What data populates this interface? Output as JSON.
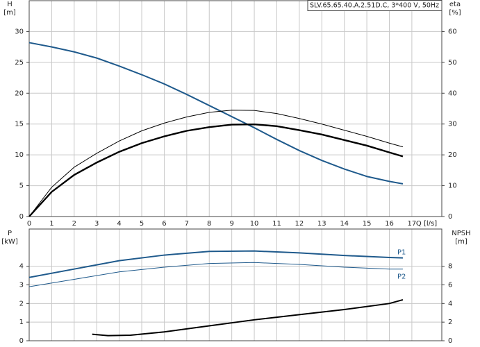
{
  "chart_data": [
    {
      "type": "line",
      "title": "SLV.65.65.40.A.2.51D.C, 3*400 V, 50Hz",
      "ylabel": "H",
      "yunit": "[m]",
      "y2label": "eta",
      "y2unit": "[%]",
      "xlabel": "Q [l/s]",
      "xlim": [
        0,
        18.33
      ],
      "xticks": [
        0,
        1,
        2,
        3,
        4,
        5,
        6,
        7,
        8,
        9,
        10,
        11,
        12,
        13,
        14,
        15,
        16,
        17
      ],
      "xtick_labels": true,
      "ylim": [
        0,
        35
      ],
      "yticks": [
        0,
        5,
        10,
        15,
        20,
        25,
        30
      ],
      "y2lim": [
        0,
        70
      ],
      "y2ticks": [
        0,
        10,
        20,
        30,
        40,
        50,
        60
      ],
      "grid": true,
      "series": [
        {
          "color": "#1f5a8c",
          "width": 2,
          "x": [
            0,
            1,
            2,
            3,
            4,
            5,
            6,
            7,
            8,
            9,
            10,
            11,
            12,
            13,
            14,
            15,
            16,
            16.6
          ],
          "values": [
            28.2,
            27.5,
            26.7,
            25.7,
            24.4,
            23.0,
            21.5,
            19.8,
            18.0,
            16.2,
            14.4,
            12.5,
            10.7,
            9.1,
            7.7,
            6.5,
            5.7,
            5.3
          ]
        },
        {
          "color": "#000000",
          "width": 1,
          "axis": "y2",
          "x": [
            0,
            1,
            2,
            3,
            4,
            5,
            6,
            7,
            8,
            9,
            10,
            11,
            12,
            13,
            14,
            15,
            16,
            16.6
          ],
          "values": [
            0,
            9.5,
            16,
            20.5,
            24.5,
            27.8,
            30.3,
            32.3,
            33.8,
            34.5,
            34.4,
            33.4,
            31.8,
            30,
            28,
            26,
            23.8,
            22.6
          ]
        },
        {
          "color": "#000000",
          "width": 2.4,
          "axis": "y2",
          "x": [
            0,
            1,
            2,
            3,
            4,
            5,
            6,
            7,
            8,
            9,
            10,
            11,
            12,
            13,
            14,
            15,
            16,
            16.6
          ],
          "values": [
            0,
            8,
            13.5,
            17.5,
            21,
            23.8,
            26,
            27.8,
            29,
            29.8,
            29.9,
            29.3,
            28,
            26.6,
            24.8,
            23,
            20.8,
            19.5
          ]
        }
      ]
    },
    {
      "type": "line",
      "ylabel": "P",
      "yunit": "[kW]",
      "y2label": "NPSH",
      "y2unit": "[m]",
      "xlim": [
        0,
        18.33
      ],
      "xticks": [
        0,
        1,
        2,
        3,
        4,
        5,
        6,
        7,
        8,
        9,
        10,
        11,
        12,
        13,
        14,
        15,
        16,
        17
      ],
      "xtick_labels": false,
      "ylim": [
        0,
        6
      ],
      "yticks": [
        0,
        1,
        2,
        3,
        4
      ],
      "y2lim": [
        0,
        12
      ],
      "y2ticks": [
        0,
        2,
        4,
        6,
        8
      ],
      "grid": true,
      "series": [
        {
          "name": "P1",
          "color": "#1f5a8c",
          "width": 2,
          "x": [
            0,
            2,
            4,
            6,
            8,
            10,
            12,
            14,
            16,
            16.6
          ],
          "values": [
            3.4,
            3.85,
            4.3,
            4.6,
            4.8,
            4.82,
            4.72,
            4.58,
            4.47,
            4.45
          ]
        },
        {
          "name": "P2",
          "color": "#1f5a8c",
          "width": 1,
          "x": [
            0,
            2,
            4,
            6,
            8,
            10,
            12,
            14,
            16,
            16.6
          ],
          "values": [
            2.9,
            3.3,
            3.7,
            3.95,
            4.15,
            4.2,
            4.1,
            3.95,
            3.85,
            3.85
          ]
        },
        {
          "color": "#000000",
          "width": 2,
          "axis": "y2",
          "x": [
            2.8,
            3.5,
            4.5,
            6,
            8,
            10,
            12,
            14,
            16,
            16.6
          ],
          "values": [
            0.7,
            0.55,
            0.6,
            0.95,
            1.6,
            2.25,
            2.8,
            3.35,
            4.0,
            4.4
          ]
        }
      ]
    }
  ]
}
